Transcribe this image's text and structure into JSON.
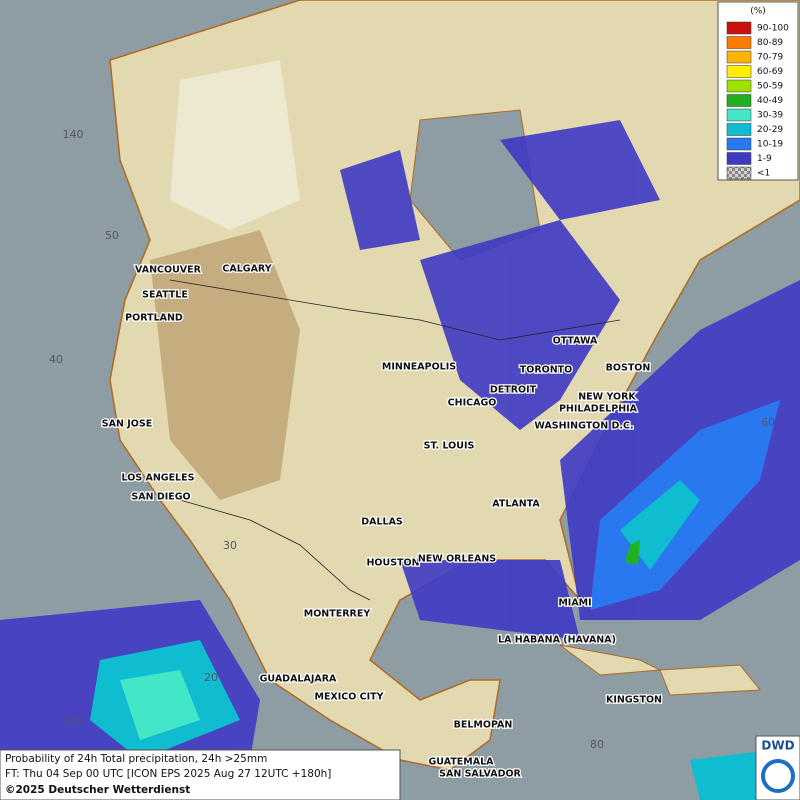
{
  "legend": {
    "title": "(%)",
    "items": [
      {
        "label": "90-100",
        "color": "#cc1010"
      },
      {
        "label": "80-89",
        "color": "#ff7a00"
      },
      {
        "label": "70-79",
        "color": "#ffb400"
      },
      {
        "label": "60-69",
        "color": "#ffee00"
      },
      {
        "label": "50-59",
        "color": "#9ee000"
      },
      {
        "label": "40-49",
        "color": "#22b022"
      },
      {
        "label": "30-39",
        "color": "#44e6c8"
      },
      {
        "label": "20-29",
        "color": "#10bcd0"
      },
      {
        "label": "10-19",
        "color": "#2a78f0"
      },
      {
        "label": "1-9",
        "color": "#3f3ac4"
      },
      {
        "label": "<1",
        "color": "#b0b0b0"
      }
    ]
  },
  "cities": [
    "VANCOUVER",
    "CALGARY",
    "SEATTLE",
    "PORTLAND",
    "MINNEAPOLIS",
    "TORONTO",
    "OTTAWA",
    "DETROIT",
    "CHICAGO",
    "BOSTON",
    "NEW YORK",
    "PHILADELPHIA",
    "WASHINGTON D.C.",
    "SAN JOSE",
    "ST. LOUIS",
    "LOS ANGELES",
    "SAN DIEGO",
    "ATLANTA",
    "DALLAS",
    "HOUSTON",
    "NEW ORLEANS",
    "MIAMI",
    "MONTERREY",
    "LA HABANA (HAVANA)",
    "GUADALAJARA",
    "MEXICO CITY",
    "KINGSTON",
    "BELMOPAN",
    "GUATEMALA",
    "SAN SALVADOR"
  ],
  "graticule": [
    "140",
    "50",
    "40",
    "60",
    "30",
    "20",
    "120",
    "80"
  ],
  "footer": {
    "line1": "Probability of 24h Total precipitation, 24h >25mm",
    "line2": "FT: Thu 04 Sep 00 UTC [ICON EPS 2025 Aug 27 12UTC +180h]",
    "line3": "©2025 Deutscher Wetterdienst"
  },
  "logo": "DWD"
}
